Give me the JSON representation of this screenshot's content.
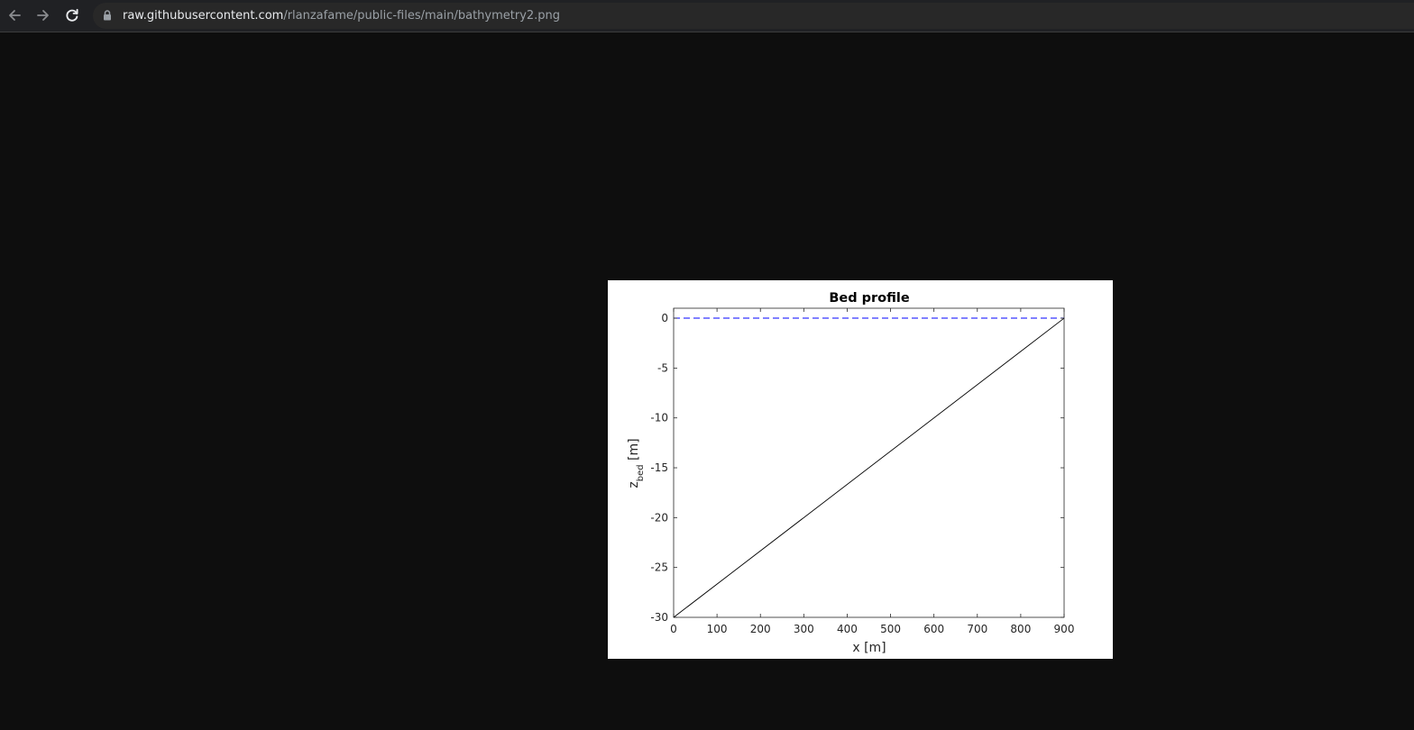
{
  "browser": {
    "url_host": "raw.githubusercontent.com",
    "url_path": "/rlanzafame/public-files/main/bathymetry2.png",
    "icons": {
      "back": "arrow-left-icon",
      "forward": "arrow-right-icon",
      "reload": "reload-icon",
      "security": "lock-icon"
    },
    "colors": {
      "page_background": "#0e0e0e",
      "toolbar": "#202124",
      "omnibox": "#282828"
    }
  },
  "chart_data": {
    "type": "line",
    "title": "Bed profile",
    "xlabel": "x [m]",
    "ylabel_main": "z",
    "ylabel_sub": "bed",
    "ylabel_unit": " [m]",
    "xlim": [
      0,
      900
    ],
    "ylim": [
      -30,
      1
    ],
    "x_ticks": [
      0,
      100,
      200,
      300,
      400,
      500,
      600,
      700,
      800,
      900
    ],
    "y_ticks": [
      0,
      -5,
      -10,
      -15,
      -20,
      -25,
      -30
    ],
    "x_tick_labels": [
      "0",
      "100",
      "200",
      "300",
      "400",
      "500",
      "600",
      "700",
      "800",
      "900"
    ],
    "y_tick_labels": [
      "0",
      "-5",
      "-10",
      "-15",
      "-20",
      "-25",
      "-30"
    ],
    "grid": false,
    "legend": "none",
    "series": [
      {
        "style": "solid",
        "color": "#000000",
        "x": [
          0,
          900
        ],
        "y": [
          -30,
          0
        ]
      },
      {
        "style": "dashed",
        "color": "#0000ff",
        "x": [
          0,
          900
        ],
        "y": [
          0,
          0
        ]
      }
    ]
  }
}
